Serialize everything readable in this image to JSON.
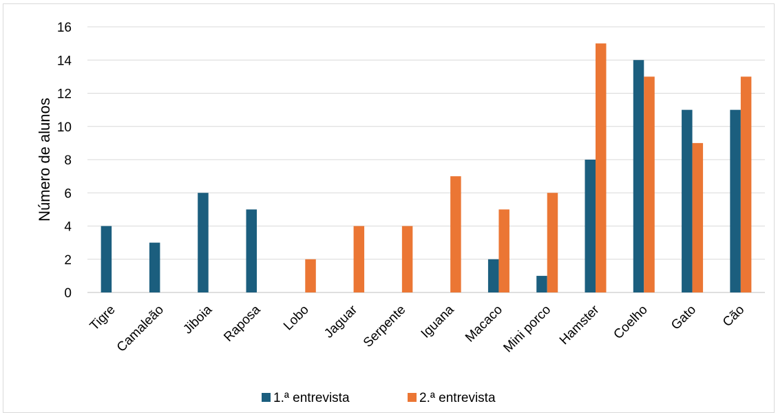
{
  "chart_data": {
    "type": "bar",
    "title": "",
    "xlabel": "",
    "ylabel": "Número de alunos",
    "ylim": [
      0,
      16
    ],
    "yticks": [
      0,
      2,
      4,
      6,
      8,
      10,
      12,
      14,
      16
    ],
    "grid": true,
    "legend_position": "bottom",
    "categories": [
      "Tigre",
      "Camaleão",
      "Jiboia",
      "Raposa",
      "Lobo",
      "Jaguar",
      "Serpente",
      "Iguana",
      "Macaco",
      "Mini porco",
      "Hamster",
      "Coelho",
      "Gato",
      "Cão"
    ],
    "series": [
      {
        "name": "1.ª entrevista",
        "color": "#1b5e7e",
        "values": [
          4,
          3,
          6,
          5,
          0,
          0,
          0,
          0,
          2,
          1,
          8,
          14,
          11,
          11
        ]
      },
      {
        "name": "2.ª entrevista",
        "color": "#eb7634",
        "values": [
          0,
          0,
          0,
          0,
          2,
          4,
          4,
          7,
          5,
          6,
          15,
          13,
          9,
          13
        ]
      }
    ]
  }
}
